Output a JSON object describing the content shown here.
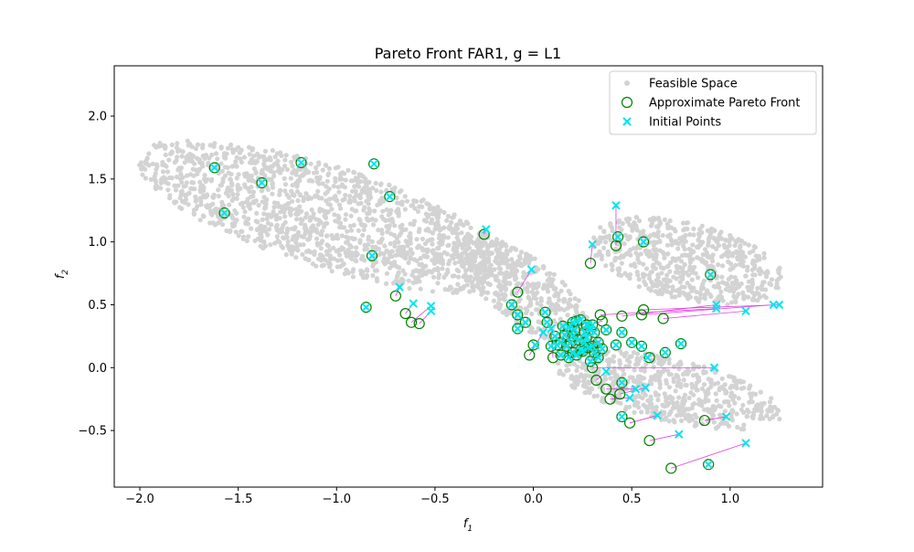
{
  "chart_data": {
    "type": "scatter",
    "title": "Pareto Front FAR1, g = L1",
    "xlabel": "f",
    "xlabel_sub": "1",
    "ylabel": "f",
    "ylabel_sub": "2",
    "xlim": [
      -2.13,
      1.47
    ],
    "ylim": [
      -0.95,
      2.4
    ],
    "xticks": [
      -2.0,
      -1.5,
      -1.0,
      -0.5,
      0.0,
      0.5,
      1.0
    ],
    "xtick_labels": [
      "−2.0",
      "−1.5",
      "−1.0",
      "−0.5",
      "0.0",
      "0.5",
      "1.0"
    ],
    "yticks": [
      -0.5,
      0.0,
      0.5,
      1.0,
      1.5,
      2.0
    ],
    "ytick_labels": [
      "−0.5",
      "0.0",
      "0.5",
      "1.0",
      "1.5",
      "2.0"
    ],
    "grid": false,
    "legend_position": "top-right",
    "legend": [
      {
        "label": "Feasible Space",
        "marker": "dot",
        "color": "#d3d3d3"
      },
      {
        "label": "Approximate Pareto Front",
        "marker": "circle",
        "color": "#008000"
      },
      {
        "label": "Initial Points",
        "marker": "x",
        "color": "#00e5ee"
      }
    ],
    "colors": {
      "feasible": "#d3d3d3",
      "pareto": "#008000",
      "initial": "#00e5ee",
      "trajectory": "#e040e0"
    },
    "feasible_region": {
      "lobes": [
        {
          "name": "upper-left",
          "center": [
            -1.05,
            1.2
          ],
          "axis_angle_deg": -28,
          "semi_major": 1.08,
          "semi_minor": 0.38
        },
        {
          "name": "upper-right",
          "center": [
            0.78,
            0.85
          ],
          "axis_angle_deg": -25,
          "semi_major": 0.52,
          "semi_minor": 0.3
        },
        {
          "name": "lower-right",
          "center": [
            0.68,
            -0.17
          ],
          "axis_angle_deg": -22,
          "semi_major": 0.62,
          "semi_minor": 0.24
        },
        {
          "name": "middle",
          "center": [
            -0.05,
            0.62
          ],
          "axis_angle_deg": -55,
          "semi_major": 0.55,
          "semi_minor": 0.2
        },
        {
          "name": "hub",
          "center": [
            0.22,
            0.2
          ],
          "axis_angle_deg": 0,
          "semi_major": 0.12,
          "semi_minor": 0.12
        }
      ]
    },
    "pairs": [
      {
        "initial": [
          -1.62,
          1.59
        ],
        "pareto": [
          -1.62,
          1.59
        ]
      },
      {
        "initial": [
          -1.38,
          1.47
        ],
        "pareto": [
          -1.38,
          1.47
        ]
      },
      {
        "initial": [
          -1.18,
          1.63
        ],
        "pareto": [
          -1.18,
          1.63
        ]
      },
      {
        "initial": [
          -1.57,
          1.23
        ],
        "pareto": [
          -1.57,
          1.23
        ]
      },
      {
        "initial": [
          -0.81,
          1.62
        ],
        "pareto": [
          -0.81,
          1.62
        ]
      },
      {
        "initial": [
          -0.73,
          1.36
        ],
        "pareto": [
          -0.73,
          1.36
        ]
      },
      {
        "initial": [
          -0.82,
          0.89
        ],
        "pareto": [
          -0.82,
          0.89
        ]
      },
      {
        "initial": [
          -0.85,
          0.48
        ],
        "pareto": [
          -0.85,
          0.48
        ]
      },
      {
        "initial": [
          -0.68,
          0.64
        ],
        "pareto": [
          -0.7,
          0.57
        ]
      },
      {
        "initial": [
          -0.61,
          0.51
        ],
        "pareto": [
          -0.65,
          0.43
        ]
      },
      {
        "initial": [
          -0.52,
          0.49
        ],
        "pareto": [
          -0.62,
          0.36
        ]
      },
      {
        "initial": [
          -0.52,
          0.45
        ],
        "pareto": [
          -0.58,
          0.35
        ]
      },
      {
        "initial": [
          -0.24,
          1.1
        ],
        "pareto": [
          -0.25,
          1.06
        ]
      },
      {
        "initial": [
          -0.01,
          0.78
        ],
        "pareto": [
          -0.08,
          0.6
        ]
      },
      {
        "initial": [
          -0.11,
          0.5
        ],
        "pareto": [
          -0.11,
          0.5
        ]
      },
      {
        "initial": [
          -0.08,
          0.42
        ],
        "pareto": [
          -0.08,
          0.42
        ]
      },
      {
        "initial": [
          -0.08,
          0.31
        ],
        "pareto": [
          -0.08,
          0.31
        ]
      },
      {
        "initial": [
          -0.04,
          0.36
        ],
        "pareto": [
          -0.04,
          0.36
        ]
      },
      {
        "initial": [
          0.06,
          0.44
        ],
        "pareto": [
          0.06,
          0.44
        ]
      },
      {
        "initial": [
          0.07,
          0.36
        ],
        "pareto": [
          0.07,
          0.36
        ]
      },
      {
        "initial": [
          0.01,
          0.18
        ],
        "pareto": [
          0.0,
          0.18
        ]
      },
      {
        "initial": [
          0.05,
          0.28
        ],
        "pareto": [
          -0.02,
          0.1
        ]
      },
      {
        "initial": [
          0.09,
          0.31
        ],
        "pareto": [
          0.1,
          0.08
        ]
      },
      {
        "initial": [
          0.3,
          0.98
        ],
        "pareto": [
          0.29,
          0.83
        ]
      },
      {
        "initial": [
          0.42,
          1.29
        ],
        "pareto": [
          0.42,
          0.97
        ]
      },
      {
        "initial": [
          0.43,
          1.04
        ],
        "pareto": [
          0.43,
          1.04
        ]
      },
      {
        "initial": [
          0.56,
          1.0
        ],
        "pareto": [
          0.56,
          1.0
        ]
      },
      {
        "initial": [
          0.9,
          0.74
        ],
        "pareto": [
          0.9,
          0.74
        ]
      },
      {
        "initial": [
          0.93,
          0.5
        ],
        "pareto": [
          0.45,
          0.41
        ]
      },
      {
        "initial": [
          1.22,
          0.5
        ],
        "pareto": [
          0.55,
          0.42
        ]
      },
      {
        "initial": [
          1.25,
          0.5
        ],
        "pareto": [
          0.56,
          0.46
        ]
      },
      {
        "initial": [
          1.08,
          0.45
        ],
        "pareto": [
          0.66,
          0.39
        ]
      },
      {
        "initial": [
          0.93,
          0.47
        ],
        "pareto": [
          0.34,
          0.42
        ]
      },
      {
        "initial": [
          0.28,
          0.34
        ],
        "pareto": [
          0.35,
          0.37
        ]
      },
      {
        "initial": [
          0.45,
          0.28
        ],
        "pareto": [
          0.45,
          0.28
        ]
      },
      {
        "initial": [
          0.42,
          0.18
        ],
        "pareto": [
          0.42,
          0.18
        ]
      },
      {
        "initial": [
          0.5,
          0.2
        ],
        "pareto": [
          0.5,
          0.2
        ]
      },
      {
        "initial": [
          0.55,
          0.17
        ],
        "pareto": [
          0.55,
          0.17
        ]
      },
      {
        "initial": [
          0.75,
          0.19
        ],
        "pareto": [
          0.75,
          0.19
        ]
      },
      {
        "initial": [
          0.67,
          0.12
        ],
        "pareto": [
          0.67,
          0.12
        ]
      },
      {
        "initial": [
          0.58,
          0.08
        ],
        "pareto": [
          0.59,
          0.08
        ]
      },
      {
        "initial": [
          0.92,
          0.0
        ],
        "pareto": [
          0.3,
          0.0
        ]
      },
      {
        "initial": [
          0.37,
          -0.03
        ],
        "pareto": [
          0.32,
          -0.1
        ]
      },
      {
        "initial": [
          0.45,
          -0.12
        ],
        "pareto": [
          0.45,
          -0.12
        ]
      },
      {
        "initial": [
          0.52,
          -0.17
        ],
        "pareto": [
          0.37,
          -0.17
        ]
      },
      {
        "initial": [
          0.57,
          -0.16
        ],
        "pareto": [
          0.44,
          -0.21
        ]
      },
      {
        "initial": [
          0.49,
          -0.24
        ],
        "pareto": [
          0.39,
          -0.25
        ]
      },
      {
        "initial": [
          0.45,
          -0.39
        ],
        "pareto": [
          0.45,
          -0.39
        ]
      },
      {
        "initial": [
          0.63,
          -0.38
        ],
        "pareto": [
          0.49,
          -0.44
        ]
      },
      {
        "initial": [
          0.74,
          -0.53
        ],
        "pareto": [
          0.59,
          -0.58
        ]
      },
      {
        "initial": [
          0.98,
          -0.39
        ],
        "pareto": [
          0.87,
          -0.42
        ]
      },
      {
        "initial": [
          1.08,
          -0.6
        ],
        "pareto": [
          0.7,
          -0.8
        ]
      },
      {
        "initial": [
          0.89,
          -0.77
        ],
        "pareto": [
          0.89,
          -0.77
        ]
      },
      {
        "initial": [
          0.3,
          0.17
        ],
        "pareto": [
          0.3,
          0.17
        ]
      },
      {
        "initial": [
          0.25,
          0.13
        ],
        "pareto": [
          0.25,
          0.13
        ]
      },
      {
        "initial": [
          0.31,
          0.28
        ],
        "pareto": [
          0.31,
          0.28
        ]
      },
      {
        "initial": [
          0.33,
          0.08
        ],
        "pareto": [
          0.33,
          0.08
        ]
      },
      {
        "initial": [
          0.2,
          0.25
        ],
        "pareto": [
          0.2,
          0.25
        ]
      },
      {
        "initial": [
          0.22,
          0.37
        ],
        "pareto": [
          0.22,
          0.37
        ]
      }
    ],
    "pareto_cluster": [
      [
        0.15,
        0.33
      ],
      [
        0.18,
        0.32
      ],
      [
        0.2,
        0.36
      ],
      [
        0.24,
        0.38
      ],
      [
        0.27,
        0.34
      ],
      [
        0.29,
        0.3
      ],
      [
        0.16,
        0.26
      ],
      [
        0.19,
        0.2
      ],
      [
        0.23,
        0.22
      ],
      [
        0.26,
        0.2
      ],
      [
        0.28,
        0.16
      ],
      [
        0.31,
        0.12
      ],
      [
        0.24,
        0.14
      ],
      [
        0.2,
        0.12
      ],
      [
        0.17,
        0.17
      ],
      [
        0.14,
        0.2
      ],
      [
        0.12,
        0.18
      ],
      [
        0.09,
        0.17
      ],
      [
        0.26,
        0.28
      ],
      [
        0.21,
        0.3
      ],
      [
        0.33,
        0.2
      ],
      [
        0.27,
        0.24
      ],
      [
        0.22,
        0.1
      ],
      [
        0.29,
        0.05
      ],
      [
        0.18,
        0.08
      ],
      [
        0.35,
        0.15
      ],
      [
        0.14,
        0.1
      ],
      [
        0.3,
        0.34
      ],
      [
        0.37,
        0.3
      ],
      [
        0.11,
        0.25
      ]
    ]
  }
}
